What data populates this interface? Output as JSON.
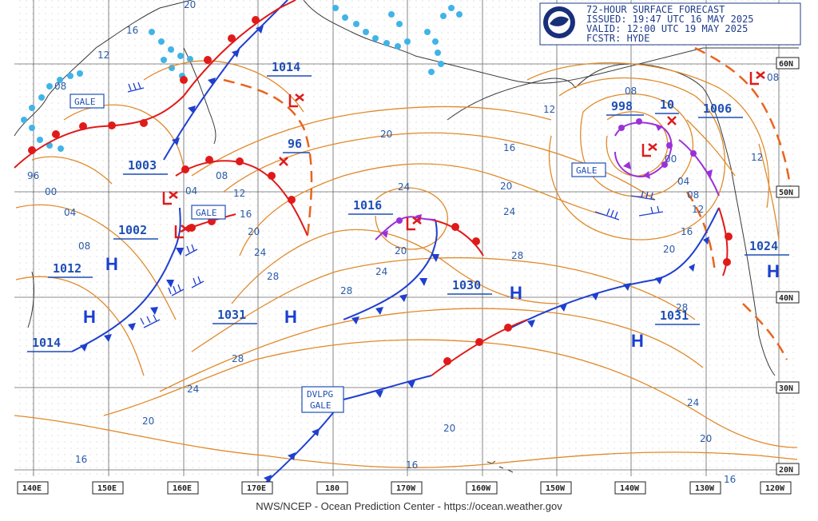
{
  "header": {
    "line1": "72-HOUR SURFACE FORECAST",
    "line2": "ISSUED: 19:47 UTC 16 MAY 2025",
    "line3": "VALID:  12:00 UTC 19 MAY 2025",
    "line4": "FCSTR:  HYDE"
  },
  "footer": "NWS/NCEP - Ocean Prediction Center - https://ocean.weather.gov",
  "longitudes": [
    "140E",
    "150E",
    "160E",
    "170E",
    "180",
    "170W",
    "160W",
    "150W",
    "140W",
    "130W",
    "120W"
  ],
  "latitudes": [
    "60N",
    "50N",
    "40N",
    "30N",
    "20N"
  ],
  "pressure_labels": [
    "1014",
    "1003",
    "1002",
    "1012",
    "1014",
    "1031",
    "1016",
    "1030",
    "998",
    "10",
    "1006",
    "1024",
    "1031",
    "96"
  ],
  "highs": [
    "H",
    "H",
    "H",
    "H",
    "H",
    "H"
  ],
  "warnings": [
    "GALE",
    "GALE",
    "GALE",
    "DVLPG",
    "GALE"
  ],
  "isobar_labels": [
    "20",
    "16",
    "12",
    "08",
    "96",
    "00",
    "04",
    "08",
    "04",
    "12",
    "08",
    "16",
    "20",
    "24",
    "28",
    "28",
    "24",
    "20",
    "16",
    "20",
    "24",
    "28",
    "24",
    "20",
    "20",
    "16",
    "12",
    "08",
    "04",
    "00",
    "08",
    "12",
    "16",
    "20",
    "24",
    "28",
    "28",
    "24",
    "20",
    "16",
    "12",
    "08",
    "20",
    "16"
  ],
  "colors": {
    "isobar": "#e08a2a",
    "cold_front": "#1f3fd0",
    "warm_front": "#e01a1a",
    "occluded": "#9b30d9",
    "trough": "#e8641e",
    "land": "#3a3a3a",
    "ice": "#40b4e8"
  }
}
